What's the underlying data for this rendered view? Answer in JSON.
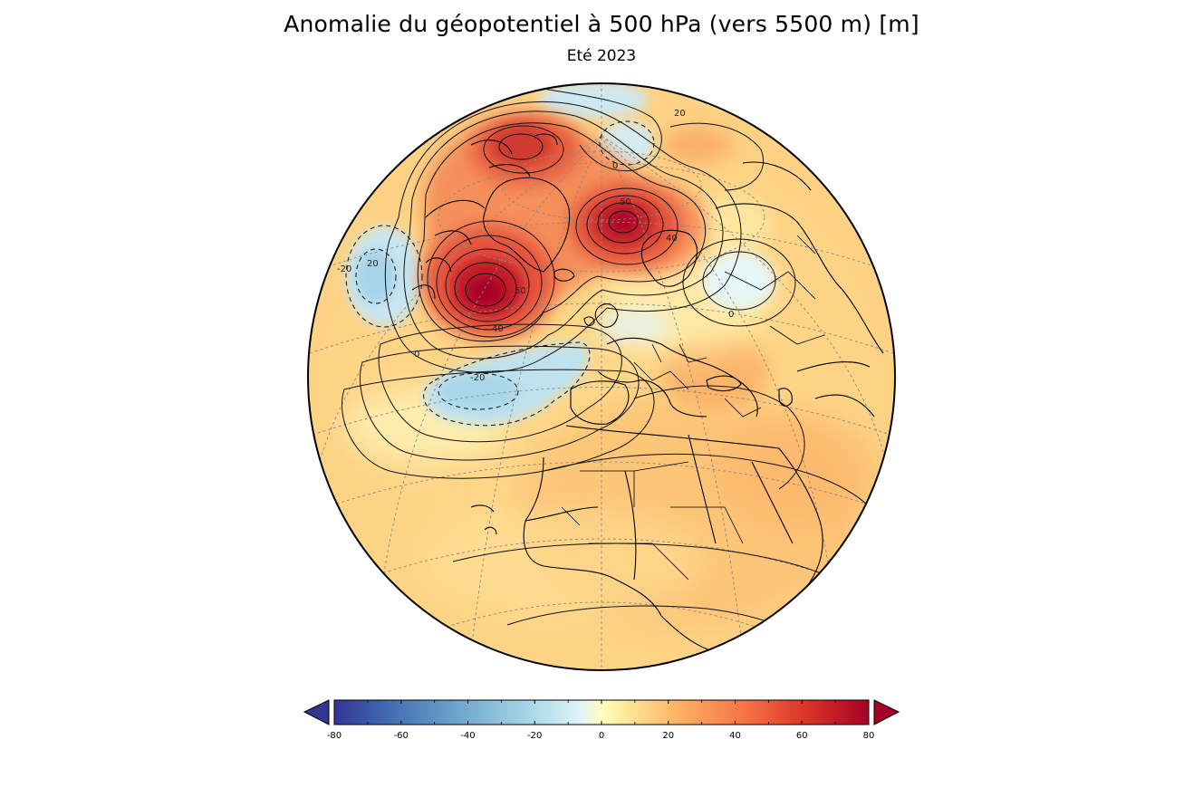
{
  "header": {
    "title": "Anomalie du géopotentiel à 500 hPa (vers 5500 m)  [m]",
    "subtitle": "Eté 2023"
  },
  "map": {
    "projection": "orthographic",
    "region": "North Atlantic, Europe and Africa",
    "grid": "dashed graticule",
    "contour_labels": [
      "0",
      "0",
      "0",
      "20",
      "20",
      "-20",
      "-20",
      "40",
      "40",
      "50",
      "50"
    ]
  },
  "colorbar": {
    "ticks": [
      "-80",
      "-60",
      "-40",
      "-20",
      "0",
      "20",
      "40",
      "60",
      "80"
    ],
    "min": -80,
    "max": 80,
    "extend": "both",
    "low_color": "#313695",
    "high_color": "#a50026"
  }
}
